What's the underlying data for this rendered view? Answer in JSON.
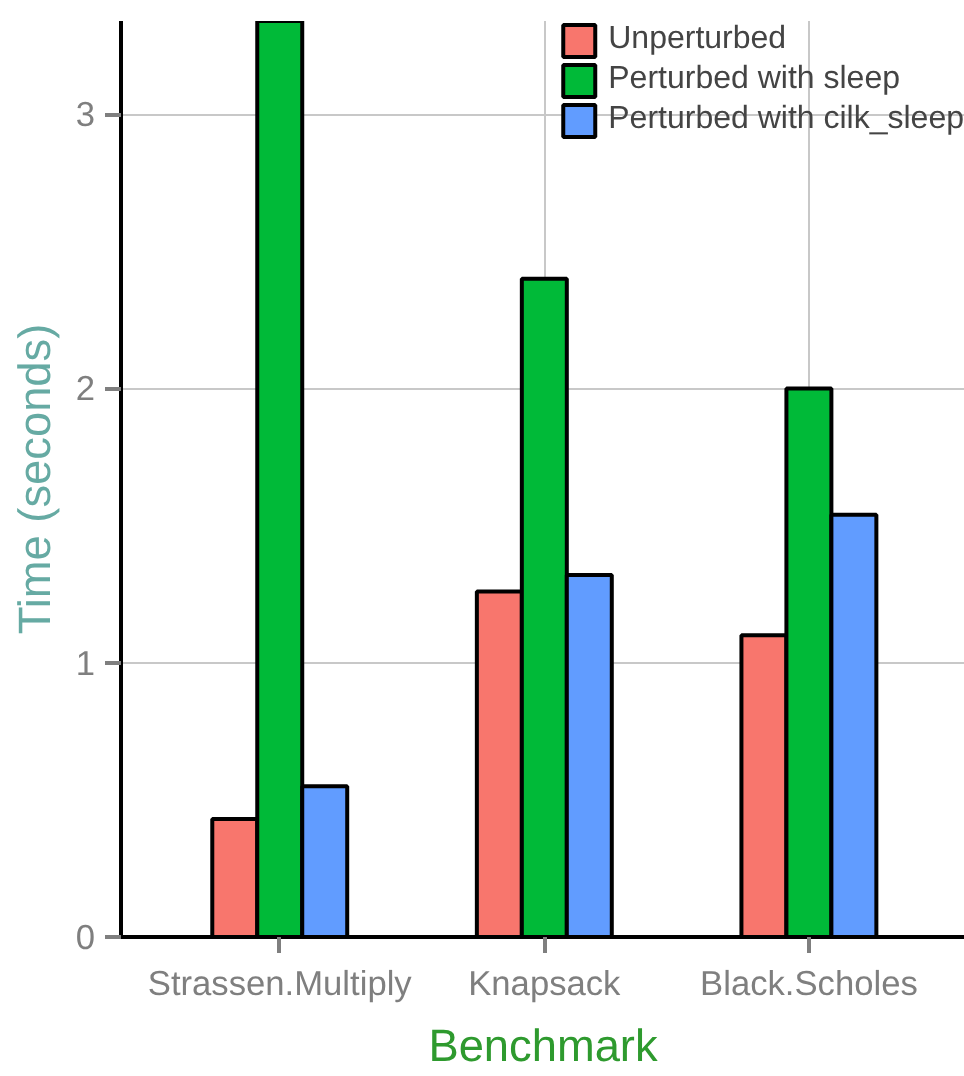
{
  "chart_data": {
    "type": "bar",
    "xlabel": "Benchmark",
    "ylabel": "Time (seconds)",
    "categories": [
      "Strassen.Multiply",
      "Knapsack",
      "Black.Scholes"
    ],
    "series": [
      {
        "name": "Unperturbed",
        "color": "#f8766d",
        "values": [
          0.43,
          1.26,
          1.1
        ]
      },
      {
        "name": "Perturbed with sleep",
        "color": "#00ba38",
        "values": [
          3.34,
          2.4,
          2.0
        ]
      },
      {
        "name": "Perturbed with cilk_sleep",
        "color": "#619cff",
        "values": [
          0.55,
          1.32,
          1.54
        ]
      }
    ],
    "ylim": [
      0,
      3.34
    ],
    "yticks": [
      0,
      1,
      2,
      3
    ],
    "grid": true,
    "legend": "top right"
  }
}
